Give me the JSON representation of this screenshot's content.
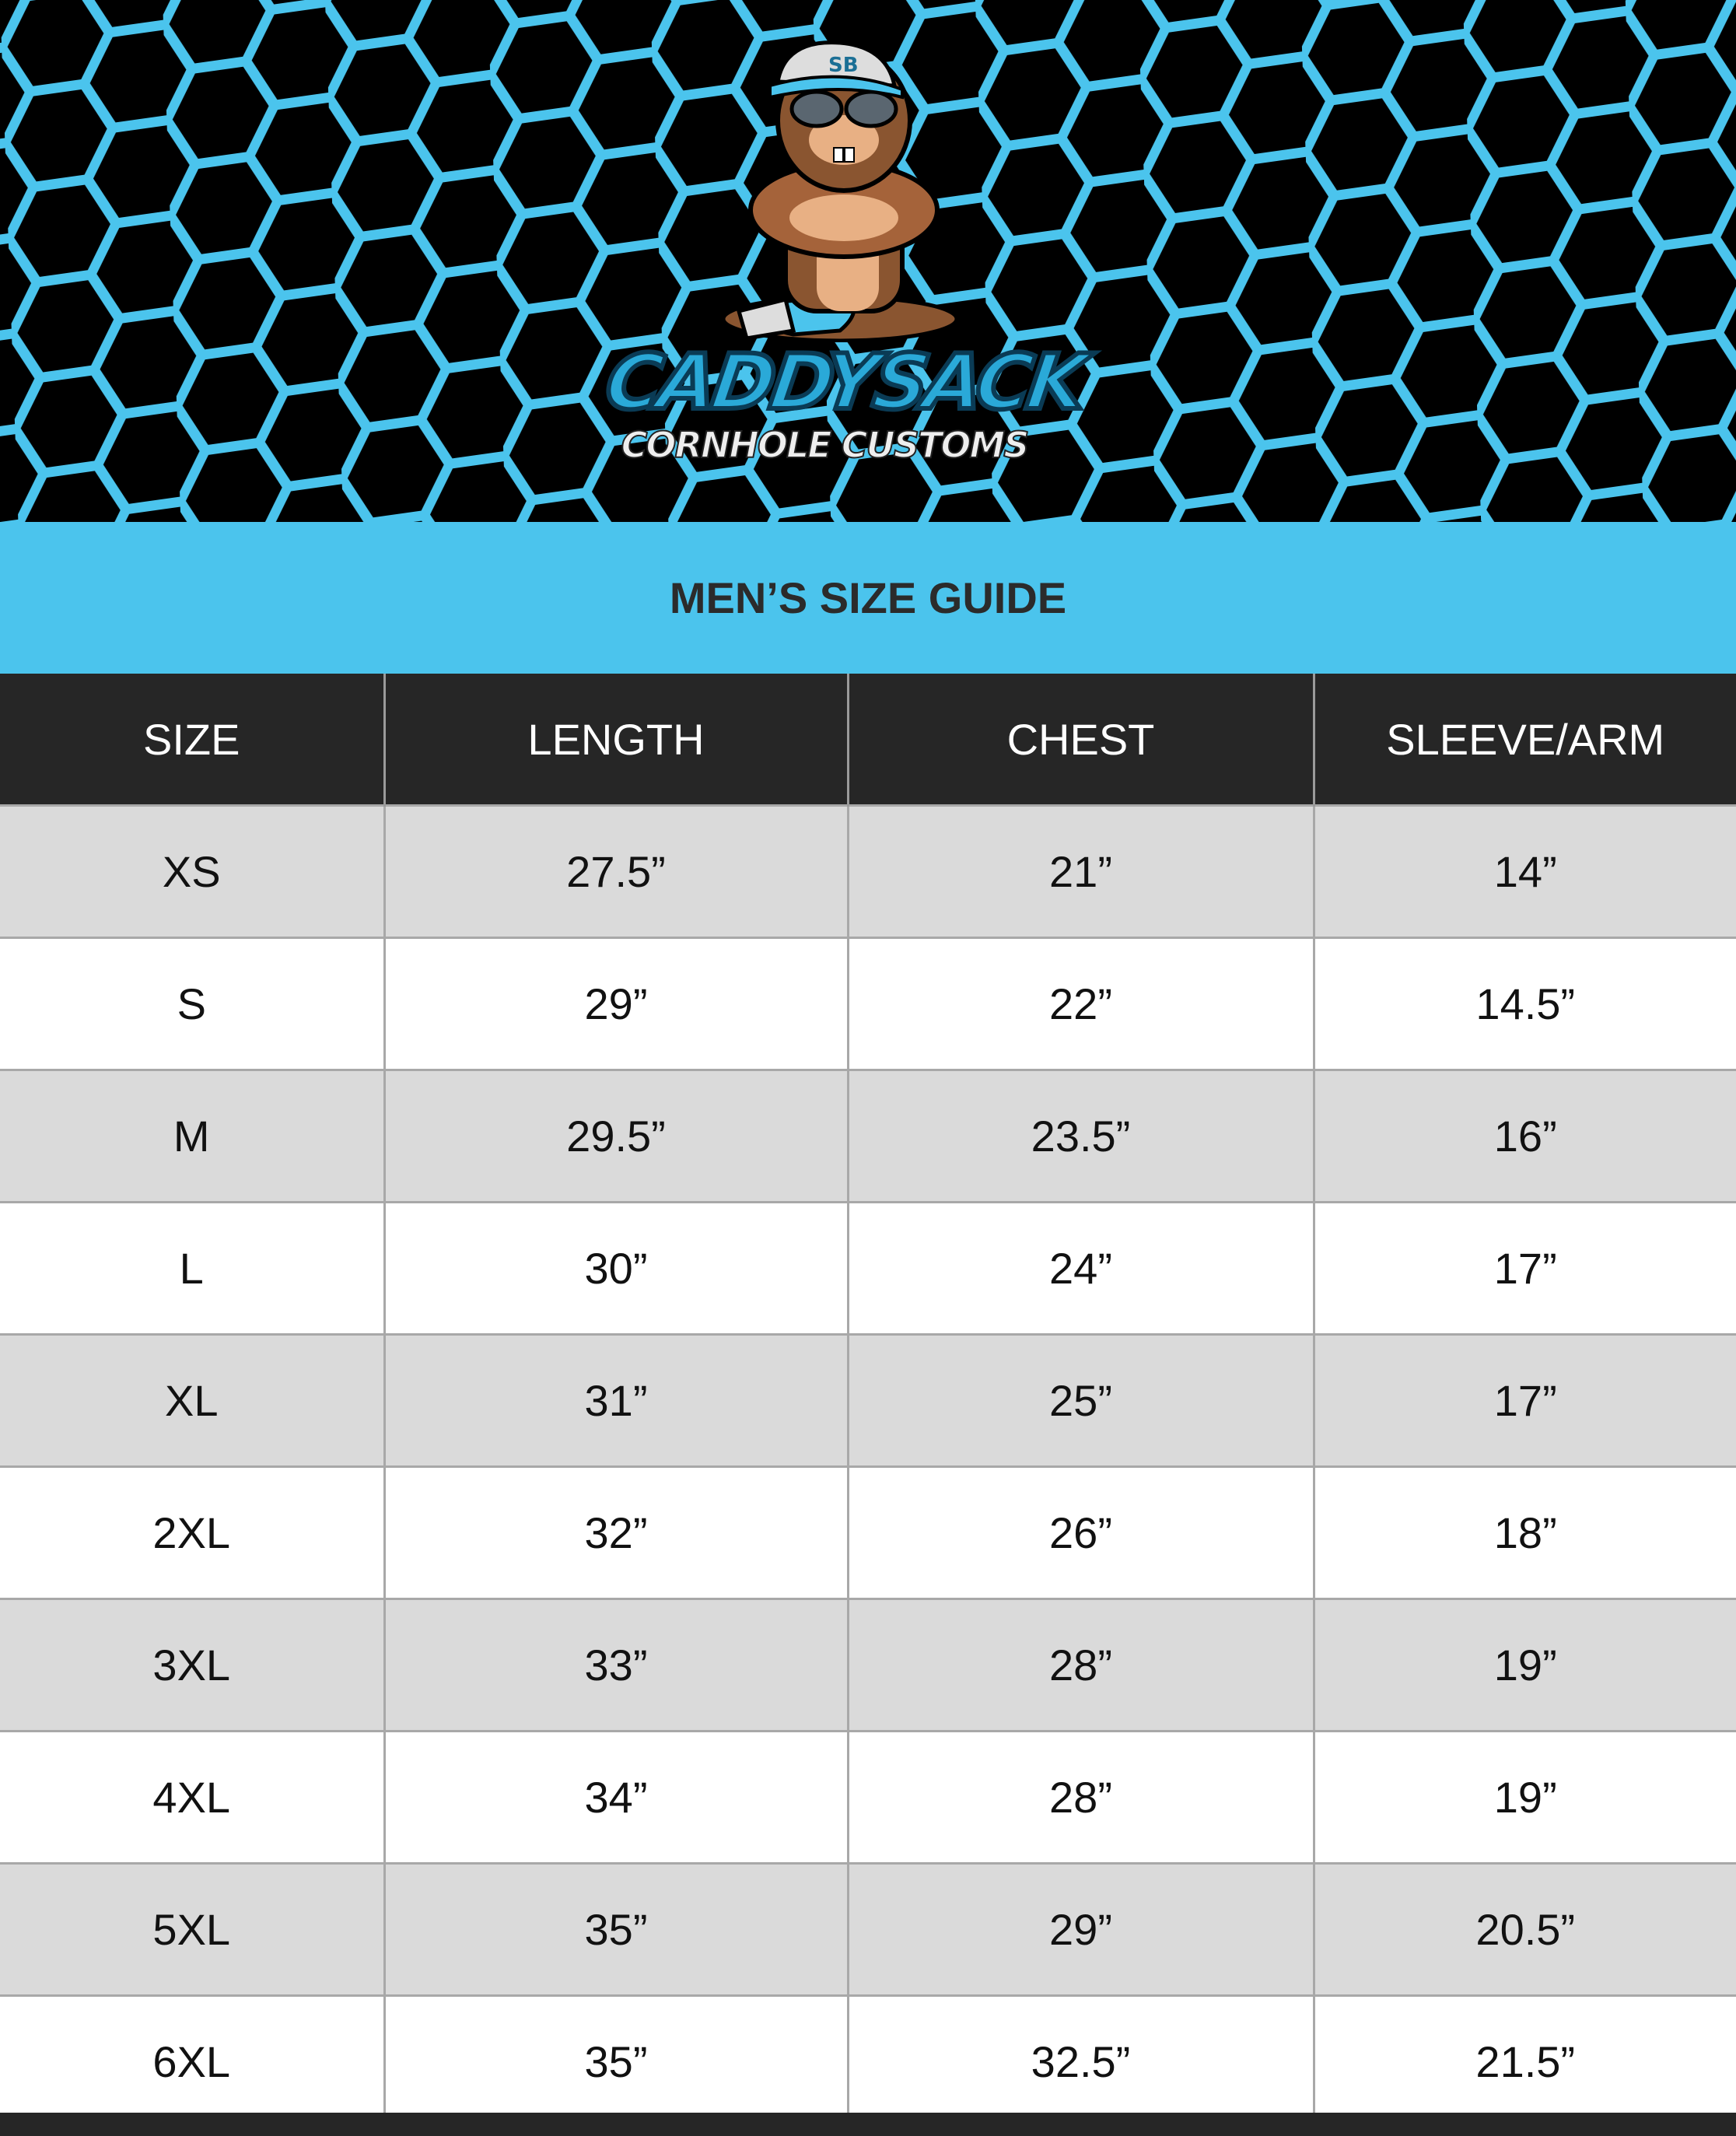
{
  "brand": {
    "logo_line1": "CADDYSACK",
    "logo_line2": "CORNHOLE CUSTOMS",
    "cap_monogram": "SB",
    "accent_color": "#4bc4ed",
    "dark_color": "#262626"
  },
  "title": "MEN’S SIZE GUIDE",
  "table": {
    "headers": [
      "SIZE",
      "LENGTH",
      "CHEST",
      "SLEEVE/ARM"
    ],
    "rows": [
      [
        "XS",
        "27.5”",
        "21”",
        "14”"
      ],
      [
        "S",
        "29”",
        "22”",
        "14.5”"
      ],
      [
        "M",
        "29.5”",
        "23.5”",
        "16”"
      ],
      [
        "L",
        "30”",
        "24”",
        "17”"
      ],
      [
        "XL",
        "31”",
        "25”",
        "17”"
      ],
      [
        "2XL",
        "32”",
        "26”",
        "18”"
      ],
      [
        "3XL",
        "33”",
        "28”",
        "19”"
      ],
      [
        "4XL",
        "34”",
        "28”",
        "19”"
      ],
      [
        "5XL",
        "35”",
        "29”",
        "20.5”"
      ],
      [
        "6XL",
        "35”",
        "32.5”",
        "21.5”"
      ]
    ]
  }
}
